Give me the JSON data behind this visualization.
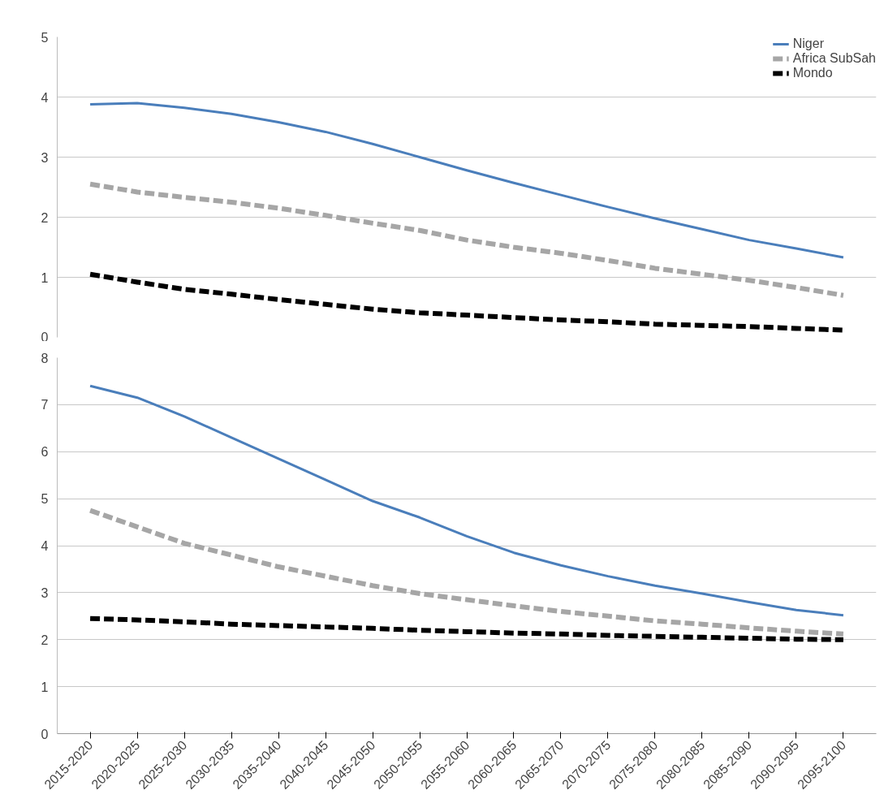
{
  "chart_data": [
    {
      "type": "line",
      "categories": [
        null,
        null,
        null,
        null,
        null,
        null,
        null,
        null,
        null,
        null,
        null,
        null,
        null,
        null,
        null,
        null,
        null
      ],
      "ylim": [
        0,
        5
      ],
      "yticks": [
        0,
        1,
        2,
        3,
        4,
        5
      ],
      "grid": "y",
      "legend": "top right",
      "tick_labels": "y",
      "series": [
        {
          "name": "Niger",
          "color": "#4a7ebb",
          "line_style": "solid",
          "values": [
            3.88,
            3.9,
            3.82,
            3.72,
            3.58,
            3.42,
            3.22,
            3.0,
            2.78,
            2.57,
            2.37,
            2.17,
            1.98,
            1.8,
            1.62,
            1.48,
            1.33
          ]
        },
        {
          "name": "Africa SubSah",
          "color": "#a6a6a6",
          "line_style": "dashed",
          "values": [
            2.55,
            2.42,
            2.33,
            2.25,
            2.15,
            2.03,
            1.9,
            1.78,
            1.62,
            1.5,
            1.4,
            1.28,
            1.15,
            1.05,
            0.95,
            0.83,
            0.7
          ]
        },
        {
          "name": "Mondo",
          "color": "#000000",
          "line_style": "dashed",
          "values": [
            1.05,
            0.92,
            0.8,
            0.72,
            0.63,
            0.55,
            0.47,
            0.41,
            0.37,
            0.33,
            0.29,
            0.26,
            0.22,
            0.2,
            0.18,
            0.15,
            0.12
          ]
        }
      ]
    },
    {
      "type": "line",
      "categories": [
        "2015-2020",
        "2020-2025",
        "2025-2030",
        "2030-2035",
        "2035-2040",
        "2040-2045",
        "2045-2050",
        "2050-2055",
        "2055-2060",
        "2060-2065",
        "2065-2070",
        "2070-2075",
        "2075-2080",
        "2080-2085",
        "2085-2090",
        "2090-2095",
        "2095-2100"
      ],
      "ylim": [
        0,
        8
      ],
      "yticks": [
        0,
        1,
        2,
        3,
        4,
        5,
        6,
        7,
        8
      ],
      "grid": "y",
      "series": [
        {
          "color": "#4a7ebb",
          "line_style": "solid",
          "values": [
            7.4,
            7.15,
            6.75,
            6.3,
            5.85,
            5.4,
            4.95,
            4.6,
            4.2,
            3.85,
            3.58,
            3.35,
            3.15,
            2.98,
            2.8,
            2.63,
            2.52
          ]
        },
        {
          "color": "#a6a6a6",
          "line_style": "dashed",
          "values": [
            4.75,
            4.4,
            4.05,
            3.8,
            3.55,
            3.35,
            3.15,
            2.98,
            2.85,
            2.72,
            2.6,
            2.5,
            2.4,
            2.33,
            2.25,
            2.18,
            2.12
          ]
        },
        {
          "color": "#000000",
          "line_style": "dashed",
          "values": [
            2.45,
            2.42,
            2.38,
            2.33,
            2.3,
            2.27,
            2.24,
            2.2,
            2.17,
            2.14,
            2.12,
            2.09,
            2.07,
            2.05,
            2.03,
            2.01,
            2.0
          ]
        }
      ]
    }
  ]
}
